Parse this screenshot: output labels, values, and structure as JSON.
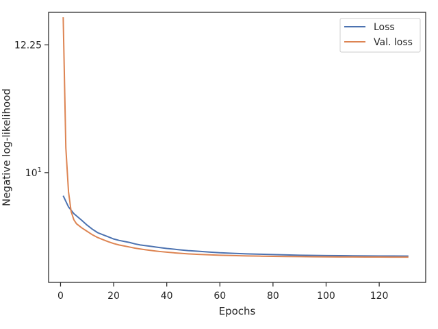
{
  "chart_data": {
    "type": "line",
    "title": "",
    "xlabel": "Epochs",
    "ylabel": "Negative log-likelihood",
    "yscale": "log",
    "xlim": [
      -4.5,
      137.5
    ],
    "ylim": [
      8.4,
      12.9
    ],
    "x_ticks": [
      0,
      20,
      40,
      60,
      80,
      100,
      120
    ],
    "x_tick_labels": [
      "0",
      "20",
      "40",
      "60",
      "80",
      "100",
      "120"
    ],
    "y_ticks": [
      10,
      12.25
    ],
    "y_tick_labels": [
      "10",
      "12.25"
    ],
    "y_tick_label_10_base": "10",
    "y_tick_label_10_exp": "1",
    "grid": false,
    "legend_position": "top-right",
    "series": [
      {
        "name": "Loss",
        "color": "#4c72b0",
        "x": [
          1,
          3,
          5,
          8,
          10,
          12,
          14,
          16,
          18,
          20,
          22,
          24,
          26,
          28,
          30,
          32,
          34,
          36,
          38,
          40,
          44,
          48,
          52,
          56,
          60,
          65,
          70,
          75,
          80,
          85,
          90,
          95,
          100,
          105,
          110,
          115,
          120,
          125,
          131
        ],
        "y": [
          9.64,
          9.47,
          9.37,
          9.27,
          9.2,
          9.14,
          9.09,
          9.06,
          9.03,
          9.0,
          8.98,
          8.965,
          8.95,
          8.93,
          8.915,
          8.905,
          8.895,
          8.885,
          8.875,
          8.865,
          8.85,
          8.835,
          8.825,
          8.815,
          8.805,
          8.797,
          8.79,
          8.785,
          8.78,
          8.775,
          8.77,
          8.768,
          8.766,
          8.764,
          8.762,
          8.761,
          8.76,
          8.759,
          8.758
        ]
      },
      {
        "name": "Val. loss",
        "color": "#dd8452",
        "x": [
          1,
          2,
          3,
          4,
          5,
          6,
          8,
          10,
          12,
          14,
          16,
          18,
          20,
          22,
          24,
          26,
          28,
          30,
          32,
          34,
          36,
          38,
          40,
          44,
          48,
          52,
          56,
          60,
          65,
          70,
          75,
          80,
          85,
          90,
          95,
          100,
          105,
          110,
          115,
          120,
          125,
          131
        ],
        "y": [
          12.8,
          10.4,
          9.7,
          9.4,
          9.28,
          9.22,
          9.16,
          9.11,
          9.06,
          9.02,
          8.99,
          8.96,
          8.935,
          8.915,
          8.9,
          8.885,
          8.87,
          8.858,
          8.847,
          8.837,
          8.828,
          8.82,
          8.813,
          8.8,
          8.79,
          8.782,
          8.776,
          8.77,
          8.765,
          8.761,
          8.758,
          8.755,
          8.753,
          8.751,
          8.749,
          8.748,
          8.747,
          8.746,
          8.745,
          8.745,
          8.744,
          8.744
        ]
      }
    ]
  }
}
